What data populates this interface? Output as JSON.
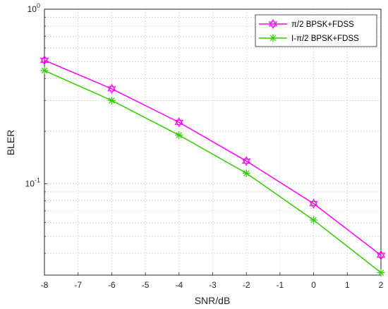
{
  "chart_data": {
    "type": "line",
    "title": "",
    "xlabel": "SNR/dB",
    "ylabel": "BLER",
    "x_scale": "linear",
    "y_scale": "log",
    "xlim": [
      -8,
      2
    ],
    "ylim": [
      0.03,
      1
    ],
    "xticks": [
      -8,
      -7,
      -6,
      -5,
      -4,
      -3,
      -2,
      -1,
      0,
      1,
      2
    ],
    "xtick_labels": [
      "-8",
      "-7",
      "-6",
      "-5",
      "-4",
      "-3",
      "-2",
      "-1",
      "0",
      "1",
      "2"
    ],
    "ytick_labels": [
      {
        "value": 1,
        "base": "10",
        "exp": "0"
      },
      {
        "value": 0.1,
        "base": "10",
        "exp": "-1"
      }
    ],
    "grid": true,
    "legend_position": "top-right",
    "x": [
      -8,
      -6,
      -4,
      -2,
      0,
      2
    ],
    "series": [
      {
        "name": "π/2 BPSK+FDSS",
        "color": "#ff00ff",
        "marker": "hexagram",
        "values": [
          0.51,
          0.35,
          0.225,
          0.135,
          0.077,
          0.039
        ]
      },
      {
        "name": "I-π/2 BPSK+FDSS",
        "color": "#33cc00",
        "marker": "asterisk",
        "values": [
          0.445,
          0.3,
          0.19,
          0.115,
          0.062,
          0.031
        ]
      }
    ]
  }
}
